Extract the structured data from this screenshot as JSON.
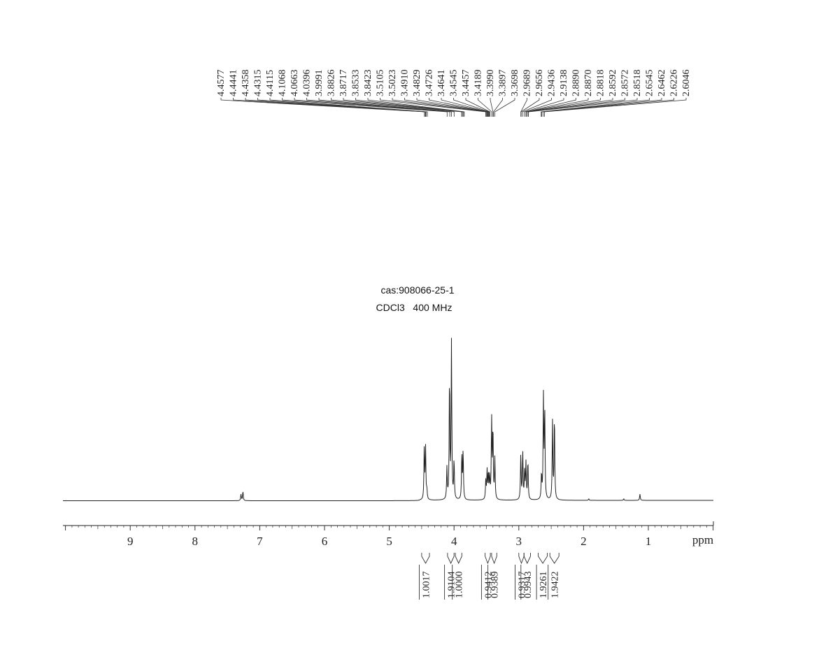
{
  "chart_data": {
    "type": "line",
    "title": "cas:908066-25-1",
    "subtitle": "CDCl3   400 MHz",
    "xlabel": "ppm",
    "ylabel": "",
    "xlim": [
      10.0,
      0.0
    ],
    "x_reversed": true,
    "grid": false,
    "legend": "none",
    "ticks": [
      9,
      8,
      7,
      6,
      5,
      4,
      3,
      2,
      1
    ],
    "tick_labels": [
      "9",
      "8",
      "7",
      "6",
      "5",
      "4",
      "3",
      "2",
      "1"
    ],
    "peak_labels": [
      "4.4577",
      "4.4441",
      "4.4358",
      "4.4315",
      "4.4115",
      "4.1068",
      "4.0663",
      "4.0396",
      "3.9991",
      "3.8826",
      "3.8717",
      "3.8533",
      "3.8423",
      "3.5105",
      "3.5023",
      "3.4910",
      "3.4829",
      "3.4726",
      "3.4641",
      "3.4545",
      "3.4457",
      "3.4189",
      "3.3990",
      "3.3897",
      "3.3698",
      "2.9689",
      "2.9656",
      "2.9436",
      "2.9138",
      "2.8890",
      "2.8870",
      "2.8818",
      "2.8592",
      "2.8572",
      "2.8518",
      "2.6545",
      "2.6462",
      "2.6226",
      "2.6046"
    ],
    "peak_marks": [
      4.4577,
      4.4441,
      4.4358,
      4.4315,
      4.4115,
      4.1068,
      4.0663,
      4.0396,
      3.9991,
      3.8826,
      3.8717,
      3.8533,
      3.8423,
      3.5105,
      3.5023,
      3.491,
      3.4829,
      3.4726,
      3.4641,
      3.4545,
      3.4457,
      3.4189,
      3.399,
      3.3897,
      3.3698,
      2.9689,
      2.9656,
      2.9436,
      2.9138,
      2.889,
      2.887,
      2.8818,
      2.8592,
      2.8572,
      2.8518,
      2.6545,
      2.6462,
      2.6226,
      2.6046
    ],
    "integrals": [
      {
        "label": "1.0017",
        "from": 4.5,
        "to": 4.38
      },
      {
        "label": "1.9104",
        "from": 4.1,
        "to": 4.0
      },
      {
        "label": "1.0000",
        "from": 3.98,
        "to": 3.88
      },
      {
        "label": "0.9412",
        "from": 3.52,
        "to": 3.44
      },
      {
        "label": "0.9389",
        "from": 3.42,
        "to": 3.34
      },
      {
        "label": "0.9317",
        "from": 3.0,
        "to": 2.92
      },
      {
        "label": "0.9943",
        "from": 2.92,
        "to": 2.82
      },
      {
        "label": "1.9261",
        "from": 2.7,
        "to": 2.56
      },
      {
        "label": "1.9422",
        "from": 2.52,
        "to": 2.38
      }
    ],
    "spectrum_peaks": [
      {
        "ppm": 7.26,
        "h": 0.06
      },
      {
        "ppm": 7.29,
        "h": 0.04
      },
      {
        "ppm": 4.46,
        "h": 0.33
      },
      {
        "ppm": 4.44,
        "h": 0.33
      },
      {
        "ppm": 4.42,
        "h": 0.06
      },
      {
        "ppm": 4.11,
        "h": 0.2
      },
      {
        "ppm": 4.07,
        "h": 0.78
      },
      {
        "ppm": 4.04,
        "h": 1.0
      },
      {
        "ppm": 4.0,
        "h": 0.25
      },
      {
        "ppm": 3.88,
        "h": 0.29
      },
      {
        "ppm": 3.86,
        "h": 0.31
      },
      {
        "ppm": 3.51,
        "h": 0.12
      },
      {
        "ppm": 3.49,
        "h": 0.18
      },
      {
        "ppm": 3.47,
        "h": 0.16
      },
      {
        "ppm": 3.45,
        "h": 0.14
      },
      {
        "ppm": 3.42,
        "h": 0.51
      },
      {
        "ppm": 3.4,
        "h": 0.45
      },
      {
        "ppm": 3.37,
        "h": 0.26
      },
      {
        "ppm": 2.97,
        "h": 0.28
      },
      {
        "ppm": 2.94,
        "h": 0.31
      },
      {
        "ppm": 2.91,
        "h": 0.18
      },
      {
        "ppm": 2.89,
        "h": 0.23
      },
      {
        "ppm": 2.86,
        "h": 0.25
      },
      {
        "ppm": 2.65,
        "h": 0.16
      },
      {
        "ppm": 2.62,
        "h": 0.65
      },
      {
        "ppm": 2.6,
        "h": 0.57
      },
      {
        "ppm": 2.48,
        "h": 0.5
      },
      {
        "ppm": 2.45,
        "h": 0.54
      },
      {
        "ppm": 1.92,
        "h": 0.01
      },
      {
        "ppm": 1.38,
        "h": 0.01
      },
      {
        "ppm": 1.13,
        "h": 0.04
      }
    ]
  }
}
